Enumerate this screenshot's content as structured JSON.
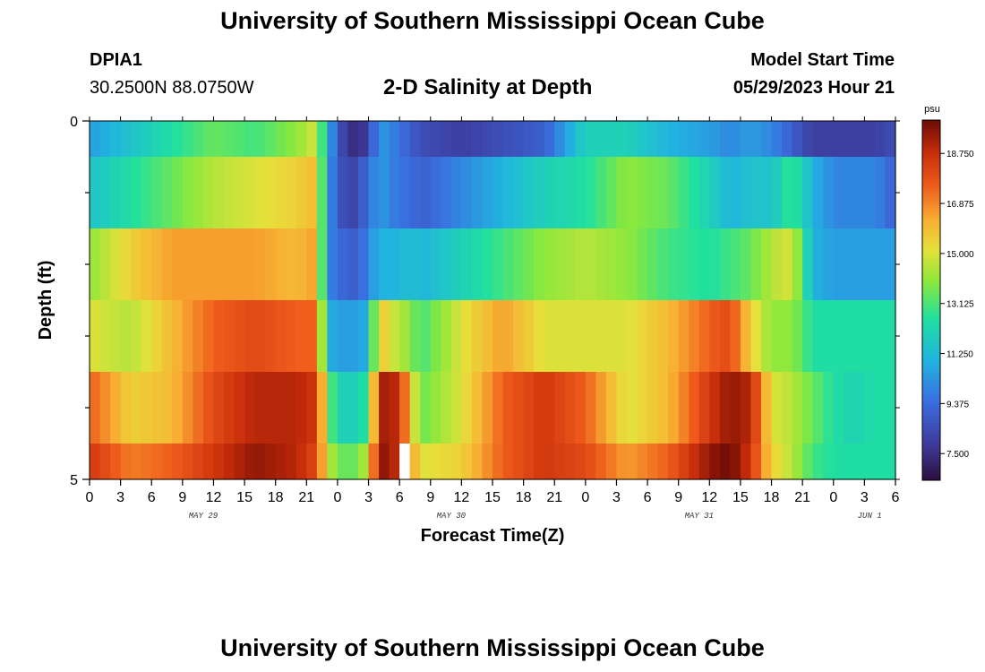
{
  "header": {
    "title": "University of Southern Mississippi Ocean Cube",
    "station_id": "DPIA1",
    "coordinates": "30.2500N  88.0750W",
    "plot_title": "2-D Salinity at Depth",
    "model_start_label": "Model Start Time",
    "model_start_value": "05/29/2023 Hour 21"
  },
  "footer": {
    "title": "University of Southern Mississippi Ocean Cube"
  },
  "colorbar": {
    "unit": "psu",
    "range": [
      6.5,
      20.0
    ],
    "ticks": [
      "18.750",
      "16.875",
      "15.000",
      "13.125",
      "11.250",
      "9.375",
      "7.500"
    ],
    "tick_values": [
      18.75,
      16.875,
      15.0,
      13.125,
      11.25,
      9.375,
      7.5
    ]
  },
  "chart_data": {
    "type": "heatmap",
    "title": "2-D Salinity at Depth",
    "xlabel": "Forecast Time(Z)",
    "ylabel": "Depth (ft)",
    "ylim": [
      0,
      5
    ],
    "y_tick_labels": [
      "0",
      "5"
    ],
    "xlim_hours": [
      0,
      78
    ],
    "x_tick_hours": [
      0,
      3,
      6,
      9,
      12,
      15,
      18,
      21,
      24,
      27,
      30,
      33,
      36,
      39,
      42,
      45,
      48,
      51,
      54,
      57,
      60,
      63,
      66,
      69,
      72,
      75,
      78
    ],
    "x_tick_labels": [
      "0",
      "3",
      "6",
      "9",
      "12",
      "15",
      "18",
      "21",
      "0",
      "3",
      "6",
      "9",
      "12",
      "15",
      "18",
      "21",
      "0",
      "3",
      "6",
      "9",
      "12",
      "15",
      "18",
      "21",
      "0",
      "3",
      "6"
    ],
    "date_labels": [
      {
        "text": "MAY 29",
        "hour": 11
      },
      {
        "text": "MAY 30",
        "hour": 35
      },
      {
        "text": "MAY 31",
        "hour": 59
      },
      {
        "text": "JUN 1",
        "hour": 75.5
      }
    ],
    "depth_bins": [
      [
        0,
        0.5
      ],
      [
        0.5,
        1.5
      ],
      [
        1.5,
        2.5
      ],
      [
        2.5,
        3.5
      ],
      [
        3.5,
        4.5
      ],
      [
        4.5,
        5
      ]
    ],
    "missing": {
      "depth_index": 5,
      "hour_start": 30,
      "hour_end": 31
    },
    "keyframes_hours": [
      0,
      4,
      8,
      12,
      16,
      20,
      22,
      23,
      24,
      25,
      26,
      27,
      28,
      29,
      30,
      31,
      32,
      36,
      40,
      44,
      48,
      52,
      56,
      60,
      62,
      64,
      66,
      68,
      70,
      72,
      74,
      76,
      78
    ],
    "salinity_psu": [
      [
        10.5,
        11.5,
        12.5,
        13.5,
        13.0,
        14.0,
        15.0,
        11.0,
        9.0,
        7.5,
        7.5,
        8.0,
        10.5,
        10.0,
        9.5,
        9.0,
        8.5,
        8.0,
        8.5,
        9.0,
        12.0,
        12.0,
        11.0,
        10.5,
        10.0,
        10.5,
        10.0,
        9.0,
        8.0,
        8.0,
        8.0,
        8.0,
        8.5
      ],
      [
        11.5,
        12.5,
        13.5,
        14.5,
        15.0,
        15.5,
        16.0,
        10.5,
        9.0,
        8.0,
        8.5,
        9.5,
        10.5,
        10.0,
        9.5,
        9.5,
        9.0,
        10.0,
        11.0,
        12.0,
        12.5,
        14.0,
        13.5,
        12.0,
        11.0,
        11.5,
        11.5,
        13.0,
        11.0,
        10.0,
        10.0,
        10.0,
        9.0
      ],
      [
        14.0,
        15.5,
        16.5,
        16.5,
        16.5,
        16.0,
        16.5,
        10.0,
        9.5,
        9.0,
        9.0,
        10.0,
        11.0,
        11.0,
        11.0,
        11.5,
        11.0,
        12.0,
        13.0,
        14.0,
        14.5,
        14.0,
        13.0,
        12.5,
        13.0,
        13.5,
        14.5,
        15.0,
        11.0,
        10.5,
        10.5,
        10.5,
        10.5
      ],
      [
        15.0,
        14.5,
        16.0,
        17.5,
        18.0,
        17.5,
        17.5,
        11.0,
        10.5,
        10.5,
        10.5,
        11.0,
        16.0,
        15.0,
        14.5,
        14.0,
        13.0,
        15.0,
        16.5,
        15.0,
        15.0,
        15.0,
        16.0,
        17.5,
        18.0,
        15.5,
        14.0,
        14.0,
        12.5,
        12.5,
        12.5,
        12.5,
        12.5
      ],
      [
        17.5,
        15.5,
        16.0,
        18.0,
        19.0,
        19.0,
        18.5,
        14.0,
        12.0,
        12.0,
        12.0,
        13.0,
        19.0,
        19.5,
        18.5,
        16.0,
        13.5,
        15.0,
        17.5,
        18.5,
        17.5,
        15.0,
        16.0,
        18.5,
        19.5,
        19.0,
        15.0,
        14.5,
        13.5,
        12.5,
        12.0,
        12.5,
        12.5
      ],
      [
        18.5,
        17.0,
        17.5,
        18.5,
        19.5,
        19.0,
        18.0,
        15.0,
        13.5,
        13.5,
        13.5,
        15.0,
        19.5,
        19.5,
        18.5,
        17.0,
        15.0,
        15.5,
        17.5,
        18.5,
        18.0,
        16.5,
        17.5,
        19.5,
        20.0,
        18.5,
        15.5,
        14.5,
        13.0,
        12.5,
        12.5,
        12.5,
        12.5
      ]
    ]
  }
}
